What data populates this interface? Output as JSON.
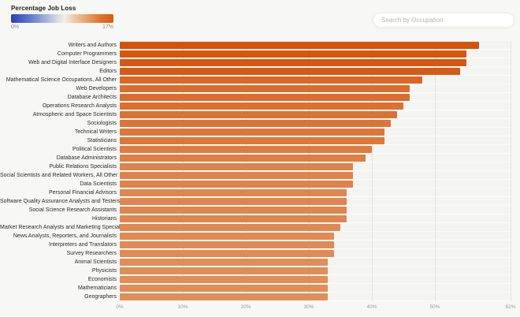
{
  "header": {
    "legend": {
      "title": "Percentage Job Loss",
      "min_label": "0%",
      "max_label": "17%",
      "gradient_start_color": "#2c3fb5",
      "gradient_mid_color": "#f2efe9",
      "gradient_end_color": "#d95c0d"
    },
    "search": {
      "placeholder": "Search by Occupation"
    }
  },
  "chart_data": {
    "type": "bar",
    "orientation": "horizontal",
    "title": "",
    "xlabel": "",
    "ylabel": "",
    "xlim": [
      0,
      62
    ],
    "grid": true,
    "x_tick_labels": [
      "0%",
      "10%",
      "20%",
      "30%",
      "40%",
      "50%",
      "62%"
    ],
    "x_tick_values": [
      0,
      10,
      20,
      30,
      40,
      50,
      62
    ],
    "color_scale": {
      "label": "Percentage Job Loss",
      "min": "0%",
      "max": "17%"
    },
    "categories": [
      "Writers and Authors",
      "Computer Programmers",
      "Web and Digital Interface Designers",
      "Editors",
      "Mathematical Science Occupations, All Other",
      "Web Developers",
      "Database Architects",
      "Operations Research Analysts",
      "Atmospheric and Space Scientists",
      "Sociologists",
      "Technical Writers",
      "Statisticians",
      "Political Scientists",
      "Database Administrators",
      "Public Relations Specialists",
      "Social Scientists and Related Workers, All Other",
      "Data Scientists",
      "Personal Financial Advisors",
      "Software Quality Assurance Analysts and Testers",
      "Social Science Research Assistants",
      "Historians",
      "Market Research Analysts and Marketing Specialists",
      "News Analysts, Reporters, and Journalists",
      "Interpreters and Translators",
      "Survey Researchers",
      "Animal Scientists",
      "Physicists",
      "Economists",
      "Mathematicians",
      "Geographers"
    ],
    "values": [
      57,
      55,
      55,
      54,
      48,
      46,
      46,
      45,
      44,
      43,
      42,
      42,
      40,
      39,
      37,
      37,
      37,
      36,
      36,
      36,
      36,
      35,
      34,
      34,
      34,
      33,
      33,
      33,
      33,
      33
    ],
    "bar_colors": [
      "#d5520a",
      "#d65710",
      "#d65710",
      "#d65914",
      "#d96827",
      "#da6d2e",
      "#da6d2e",
      "#db7031",
      "#db7234",
      "#db7437",
      "#dc773b",
      "#dc773b",
      "#dd7c41",
      "#dd7e45",
      "#de834b",
      "#de834b",
      "#de834b",
      "#df864e",
      "#df864e",
      "#df864e",
      "#df864e",
      "#df8852",
      "#e08b55",
      "#e08b55",
      "#e08b55",
      "#e08d58",
      "#e08d58",
      "#e08d58",
      "#e08d58",
      "#e08d58"
    ]
  }
}
